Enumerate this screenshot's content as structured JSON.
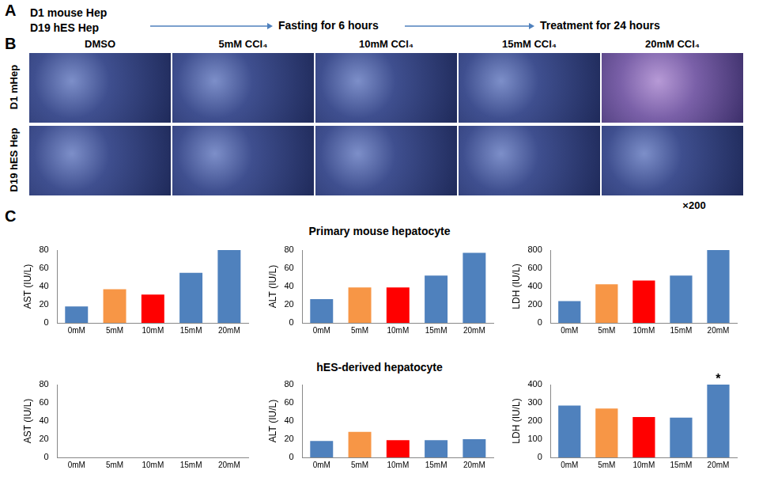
{
  "panel_a": {
    "label": "A",
    "sources": [
      "D1 mouse Hep",
      "D19 hES Hep"
    ],
    "steps": [
      "Fasting for 6 hours",
      "Treatment for 24 hours"
    ]
  },
  "panel_b": {
    "label": "B",
    "columns": [
      "DMSO",
      "5mM CCl₄",
      "10mM CCl₄",
      "15mM CCl₄",
      "20mM CCl₄"
    ],
    "rows": [
      "D1 mHep",
      "D19 hES Hep"
    ],
    "magnification": "×200"
  },
  "panel_c": {
    "label": "C",
    "row_titles": [
      "Primary mouse hepatocyte",
      "hES-derived hepatocyte"
    ]
  },
  "chart_data": [
    {
      "type": "bar",
      "y_label": "AST (IU/L)",
      "categories": [
        "0mM",
        "5mM",
        "10mM",
        "15mM",
        "20mM"
      ],
      "values": [
        18,
        37,
        31,
        55,
        80
      ],
      "colors": [
        "#4f81bd",
        "#f79646",
        "#ff0000",
        "#4f81bd",
        "#4f81bd"
      ],
      "ylim": [
        0,
        80
      ],
      "yticks": [
        0,
        20,
        40,
        60,
        80
      ],
      "grid": false
    },
    {
      "type": "bar",
      "y_label": "ALT (IU/L)",
      "categories": [
        "0mM",
        "5mM",
        "10mM",
        "15mM",
        "20mM"
      ],
      "values": [
        26,
        39,
        39,
        52,
        77
      ],
      "colors": [
        "#4f81bd",
        "#f79646",
        "#ff0000",
        "#4f81bd",
        "#4f81bd"
      ],
      "ylim": [
        0,
        80
      ],
      "yticks": [
        0,
        20,
        40,
        60,
        80
      ],
      "grid": false
    },
    {
      "type": "bar",
      "y_label": "LDH (IU/L)",
      "categories": [
        "0mM",
        "5mM",
        "10mM",
        "15mM",
        "20mM"
      ],
      "values": [
        240,
        425,
        465,
        520,
        800
      ],
      "colors": [
        "#4f81bd",
        "#f79646",
        "#ff0000",
        "#4f81bd",
        "#4f81bd"
      ],
      "ylim": [
        0,
        800
      ],
      "yticks": [
        0,
        200,
        400,
        600,
        800
      ],
      "grid": false
    },
    {
      "type": "bar",
      "y_label": "AST (IU/L)",
      "categories": [
        "0mM",
        "5mM",
        "10mM",
        "15mM",
        "20mM"
      ],
      "values": [
        0,
        0,
        0,
        0,
        0
      ],
      "colors": [
        "#4f81bd",
        "#f79646",
        "#ff0000",
        "#4f81bd",
        "#4f81bd"
      ],
      "ylim": [
        0,
        80
      ],
      "yticks": [
        0,
        20,
        40,
        60,
        80
      ],
      "grid": false
    },
    {
      "type": "bar",
      "y_label": "ALT (IU/L)",
      "categories": [
        "0mM",
        "5mM",
        "10mM",
        "15mM",
        "20mM"
      ],
      "values": [
        18,
        28,
        19,
        19,
        20
      ],
      "colors": [
        "#4f81bd",
        "#f79646",
        "#ff0000",
        "#4f81bd",
        "#4f81bd"
      ],
      "ylim": [
        0,
        80
      ],
      "yticks": [
        0,
        20,
        40,
        60,
        80
      ],
      "grid": false
    },
    {
      "type": "bar",
      "y_label": "LDH (IU/L)",
      "categories": [
        "0mM",
        "5mM",
        "10mM",
        "15mM",
        "20mM"
      ],
      "values": [
        285,
        268,
        222,
        218,
        400
      ],
      "colors": [
        "#4f81bd",
        "#f79646",
        "#ff0000",
        "#4f81bd",
        "#4f81bd"
      ],
      "ylim": [
        0,
        400
      ],
      "yticks": [
        0,
        100,
        200,
        300,
        400
      ],
      "grid": false,
      "annotations": [
        {
          "x": "20mM",
          "text": "*"
        }
      ]
    }
  ]
}
